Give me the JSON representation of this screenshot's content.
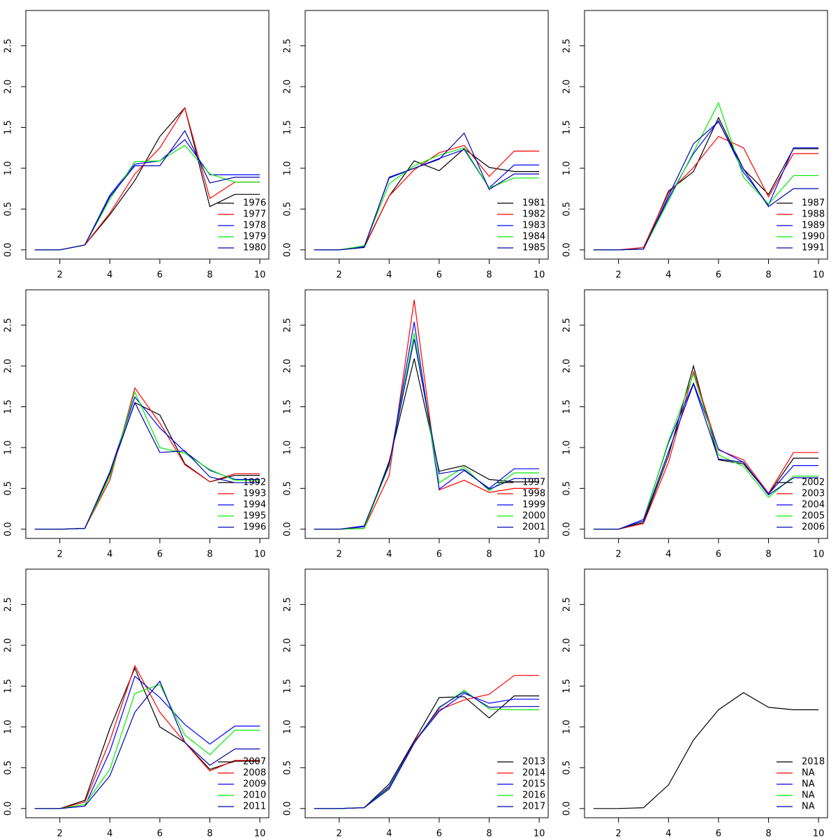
{
  "chart_data": [
    {
      "type": "line",
      "x": [
        1,
        2,
        3,
        4,
        5,
        6,
        7,
        8,
        9,
        10
      ],
      "xlim": [
        0.64,
        10.36
      ],
      "ylim": [
        -0.113,
        2.933
      ],
      "xticks": [
        2,
        4,
        6,
        8,
        10
      ],
      "yticks": [
        {
          "value": 0,
          "label": "0.0"
        },
        0.5,
        {
          "value": 1,
          "label": "1.0"
        },
        1.5,
        {
          "value": 2,
          "label": "2.0"
        },
        2.5
      ],
      "legend": "bottomright",
      "series": [
        {
          "name": "1976",
          "color": "#000000",
          "values": [
            0,
            0,
            0.06,
            0.43,
            0.85,
            1.39,
            1.74,
            0.53,
            0.68,
            0.68
          ]
        },
        {
          "name": "1977",
          "color": "#ff0000",
          "values": [
            0,
            0,
            0.06,
            0.45,
            0.93,
            1.25,
            1.74,
            0.63,
            0.83,
            0.83
          ]
        },
        {
          "name": "1978",
          "color": "#0000ff",
          "values": [
            0,
            0,
            0.06,
            0.67,
            1.05,
            1.09,
            1.35,
            0.92,
            0.92,
            0.92
          ]
        },
        {
          "name": "1979",
          "color": "#00ee00",
          "values": [
            0,
            0,
            0.06,
            0.62,
            1.08,
            1.09,
            1.28,
            0.93,
            0.83,
            0.83
          ]
        },
        {
          "name": "1980",
          "color": "#0000b0",
          "values": [
            0,
            0,
            0.06,
            0.65,
            1.03,
            1.03,
            1.46,
            0.82,
            0.89,
            0.89
          ]
        }
      ]
    },
    {
      "type": "line",
      "x": [
        1,
        2,
        3,
        4,
        5,
        6,
        7,
        8,
        9,
        10
      ],
      "xlim": [
        0.64,
        10.36
      ],
      "ylim": [
        -0.113,
        2.933
      ],
      "xticks": [
        2,
        4,
        6,
        8,
        10
      ],
      "yticks": [
        {
          "value": 0,
          "label": "0.0"
        },
        0.5,
        {
          "value": 1,
          "label": "1.0"
        },
        1.5,
        {
          "value": 2,
          "label": "2.0"
        },
        2.5
      ],
      "legend": "bottomright",
      "series": [
        {
          "name": "1981",
          "color": "#000000",
          "values": [
            0,
            0,
            0.03,
            0.66,
            1.09,
            0.97,
            1.24,
            1.01,
            0.96,
            0.96
          ]
        },
        {
          "name": "1982",
          "color": "#ff0000",
          "values": [
            0,
            0,
            0.04,
            0.66,
            0.98,
            1.19,
            1.28,
            0.9,
            1.21,
            1.21
          ]
        },
        {
          "name": "1983",
          "color": "#0000ff",
          "values": [
            0,
            0,
            0.04,
            0.88,
            1.0,
            1.12,
            1.23,
            0.76,
            1.04,
            1.04
          ]
        },
        {
          "name": "1984",
          "color": "#00ee00",
          "values": [
            0,
            0,
            0.05,
            0.81,
            1.03,
            1.16,
            1.25,
            0.76,
            0.88,
            0.88
          ]
        },
        {
          "name": "1985",
          "color": "#0000b0",
          "values": [
            0,
            0,
            0.03,
            0.89,
            1.0,
            1.11,
            1.43,
            0.74,
            0.93,
            0.93
          ]
        }
      ]
    },
    {
      "type": "line",
      "x": [
        1,
        2,
        3,
        4,
        5,
        6,
        7,
        8,
        9,
        10
      ],
      "xlim": [
        0.64,
        10.36
      ],
      "ylim": [
        -0.113,
        2.933
      ],
      "xticks": [
        2,
        4,
        6,
        8,
        10
      ],
      "yticks": [
        {
          "value": 0,
          "label": "0.0"
        },
        0.5,
        {
          "value": 1,
          "label": "1.0"
        },
        1.5,
        {
          "value": 2,
          "label": "2.0"
        },
        2.5
      ],
      "legend": "bottomright",
      "series": [
        {
          "name": "1987",
          "color": "#000000",
          "values": [
            0,
            0,
            0.01,
            0.72,
            0.96,
            1.62,
            0.99,
            0.68,
            1.24,
            1.24
          ]
        },
        {
          "name": "1988",
          "color": "#ff0000",
          "values": [
            0,
            0,
            0.03,
            0.7,
            1.01,
            1.39,
            1.25,
            0.65,
            1.18,
            1.18
          ]
        },
        {
          "name": "1989",
          "color": "#0000ff",
          "values": [
            0,
            0,
            0.01,
            0.63,
            1.18,
            1.58,
            0.95,
            0.55,
            1.25,
            1.25
          ]
        },
        {
          "name": "1990",
          "color": "#00ee00",
          "values": [
            0,
            0,
            0.01,
            0.6,
            1.2,
            1.8,
            0.89,
            0.56,
            0.91,
            0.91
          ]
        },
        {
          "name": "1991",
          "color": "#0000b0",
          "values": [
            0,
            0,
            0.01,
            0.66,
            1.3,
            1.57,
            0.99,
            0.53,
            0.75,
            0.75
          ]
        }
      ]
    },
    {
      "type": "line",
      "x": [
        1,
        2,
        3,
        4,
        5,
        6,
        7,
        8,
        9,
        10
      ],
      "xlim": [
        0.64,
        10.36
      ],
      "ylim": [
        -0.113,
        2.933
      ],
      "xticks": [
        2,
        4,
        6,
        8,
        10
      ],
      "yticks": [
        {
          "value": 0,
          "label": "0.0"
        },
        0.5,
        {
          "value": 1,
          "label": "1.0"
        },
        1.5,
        {
          "value": 2,
          "label": "2.0"
        },
        2.5
      ],
      "legend": "bottomright",
      "series": [
        {
          "name": "1992",
          "color": "#000000",
          "values": [
            0,
            0,
            0.01,
            0.68,
            1.55,
            1.4,
            0.8,
            0.58,
            0.66,
            0.66
          ]
        },
        {
          "name": "1993",
          "color": "#ff0000",
          "values": [
            0,
            0,
            0.01,
            0.6,
            1.73,
            1.3,
            0.79,
            0.58,
            0.68,
            0.68
          ]
        },
        {
          "name": "1994",
          "color": "#0000ff",
          "values": [
            0,
            0,
            0.01,
            0.7,
            1.62,
            1.24,
            0.95,
            0.72,
            0.61,
            0.61
          ]
        },
        {
          "name": "1995",
          "color": "#00ee00",
          "values": [
            0,
            0,
            0.01,
            0.64,
            1.68,
            1.0,
            0.93,
            0.73,
            0.6,
            0.6
          ]
        },
        {
          "name": "1996",
          "color": "#0000b0",
          "values": [
            0,
            0,
            0.01,
            0.7,
            1.55,
            0.94,
            0.96,
            0.64,
            0.57,
            0.57
          ]
        }
      ]
    },
    {
      "type": "line",
      "x": [
        1,
        2,
        3,
        4,
        5,
        6,
        7,
        8,
        9,
        10
      ],
      "xlim": [
        0.64,
        10.36
      ],
      "ylim": [
        -0.113,
        2.933
      ],
      "xticks": [
        2,
        4,
        6,
        8,
        10
      ],
      "yticks": [
        {
          "value": 0,
          "label": "0.0"
        },
        0.5,
        {
          "value": 1,
          "label": "1.0"
        },
        1.5,
        {
          "value": 2,
          "label": "2.0"
        },
        2.5
      ],
      "legend": "bottomright",
      "series": [
        {
          "name": "1997",
          "color": "#000000",
          "values": [
            0,
            0,
            0.01,
            0.83,
            2.09,
            0.71,
            0.78,
            0.61,
            0.58,
            0.58
          ]
        },
        {
          "name": "1998",
          "color": "#ff0000",
          "values": [
            0,
            0,
            0.01,
            0.66,
            2.81,
            0.48,
            0.6,
            0.45,
            0.5,
            0.5
          ]
        },
        {
          "name": "1999",
          "color": "#0000ff",
          "values": [
            0,
            0,
            0.03,
            0.78,
            2.54,
            0.49,
            0.72,
            0.5,
            0.74,
            0.74
          ]
        },
        {
          "name": "2000",
          "color": "#00ee00",
          "values": [
            0,
            0,
            0.01,
            0.79,
            2.4,
            0.57,
            0.76,
            0.47,
            0.69,
            0.69
          ]
        },
        {
          "name": "2001",
          "color": "#0000b0",
          "values": [
            0,
            0,
            0.04,
            0.8,
            2.33,
            0.68,
            0.73,
            0.49,
            0.62,
            0.62
          ]
        }
      ]
    },
    {
      "type": "line",
      "x": [
        1,
        2,
        3,
        4,
        5,
        6,
        7,
        8,
        9,
        10
      ],
      "xlim": [
        0.64,
        10.36
      ],
      "ylim": [
        -0.113,
        2.933
      ],
      "xticks": [
        2,
        4,
        6,
        8,
        10
      ],
      "yticks": [
        {
          "value": 0,
          "label": "0.0"
        },
        0.5,
        {
          "value": 1,
          "label": "1.0"
        },
        1.5,
        {
          "value": 2,
          "label": "2.0"
        },
        2.5
      ],
      "legend": "bottomright",
      "series": [
        {
          "name": "2002",
          "color": "#000000",
          "values": [
            0,
            0,
            0.08,
            0.9,
            2.0,
            0.85,
            0.8,
            0.43,
            0.87,
            0.87
          ]
        },
        {
          "name": "2003",
          "color": "#ff0000",
          "values": [
            0,
            0,
            0.07,
            0.82,
            1.93,
            0.97,
            0.85,
            0.44,
            0.94,
            0.94
          ]
        },
        {
          "name": "2004",
          "color": "#0000ff",
          "values": [
            0,
            0,
            0.12,
            1.06,
            1.79,
            0.98,
            0.82,
            0.43,
            0.78,
            0.78
          ]
        },
        {
          "name": "2005",
          "color": "#00ee00",
          "values": [
            0,
            0,
            0.1,
            1.08,
            1.9,
            0.91,
            0.77,
            0.39,
            0.65,
            0.65
          ]
        },
        {
          "name": "2006",
          "color": "#0000b0",
          "values": [
            0,
            0,
            0.1,
            0.95,
            1.78,
            0.86,
            0.82,
            0.42,
            0.63,
            0.63
          ]
        }
      ]
    },
    {
      "type": "line",
      "x": [
        1,
        2,
        3,
        4,
        5,
        6,
        7,
        8,
        9,
        10
      ],
      "xlim": [
        0.64,
        10.36
      ],
      "ylim": [
        -0.113,
        2.933
      ],
      "xticks": [
        2,
        4,
        6,
        8,
        10
      ],
      "yticks": [
        {
          "value": 0,
          "label": "0.0"
        },
        0.5,
        {
          "value": 1,
          "label": "1.0"
        },
        1.5,
        {
          "value": 2,
          "label": "2.0"
        },
        2.5
      ],
      "legend": "bottomright",
      "series": [
        {
          "name": "2007",
          "color": "#000000",
          "values": [
            0,
            0,
            0.1,
            0.98,
            1.72,
            1.0,
            0.81,
            0.48,
            0.58,
            0.58
          ]
        },
        {
          "name": "2008",
          "color": "#ff0000",
          "values": [
            0,
            0,
            0.08,
            0.83,
            1.75,
            1.18,
            0.81,
            0.46,
            0.59,
            0.59
          ]
        },
        {
          "name": "2009",
          "color": "#0000ff",
          "values": [
            0,
            0,
            0.03,
            0.7,
            1.62,
            1.36,
            1.03,
            0.79,
            1.01,
            1.01
          ]
        },
        {
          "name": "2010",
          "color": "#00ee00",
          "values": [
            0,
            0,
            0.05,
            0.48,
            1.41,
            1.52,
            0.9,
            0.66,
            0.96,
            0.96
          ]
        },
        {
          "name": "2011",
          "color": "#0000b0",
          "values": [
            0,
            0,
            0.03,
            0.4,
            1.18,
            1.56,
            0.81,
            0.53,
            0.73,
            0.73
          ]
        }
      ]
    },
    {
      "type": "line",
      "x": [
        1,
        2,
        3,
        4,
        5,
        6,
        7,
        8,
        9,
        10
      ],
      "xlim": [
        0.64,
        10.36
      ],
      "ylim": [
        -0.113,
        2.933
      ],
      "xticks": [
        2,
        4,
        6,
        8,
        10
      ],
      "yticks": [
        {
          "value": 0,
          "label": "0.0"
        },
        0.5,
        {
          "value": 1,
          "label": "1.0"
        },
        1.5,
        {
          "value": 2,
          "label": "2.0"
        },
        2.5
      ],
      "legend": "bottomright",
      "series": [
        {
          "name": "2013",
          "color": "#000000",
          "values": [
            0,
            0,
            0.01,
            0.3,
            0.83,
            1.36,
            1.37,
            1.11,
            1.38,
            1.38
          ]
        },
        {
          "name": "2014",
          "color": "#ff0000",
          "values": [
            0,
            0,
            0.01,
            0.26,
            0.82,
            1.21,
            1.33,
            1.4,
            1.63,
            1.63
          ]
        },
        {
          "name": "2015",
          "color": "#0000ff",
          "values": [
            0,
            0,
            0.01,
            0.27,
            0.81,
            1.19,
            1.41,
            1.29,
            1.34,
            1.34
          ]
        },
        {
          "name": "2016",
          "color": "#00ee00",
          "values": [
            0,
            0,
            0.01,
            0.25,
            0.8,
            1.23,
            1.45,
            1.22,
            1.21,
            1.21
          ]
        },
        {
          "name": "2017",
          "color": "#0000b0",
          "values": [
            0,
            0,
            0.01,
            0.24,
            0.8,
            1.24,
            1.43,
            1.24,
            1.25,
            1.25
          ]
        }
      ]
    },
    {
      "type": "line",
      "x": [
        1,
        2,
        3,
        4,
        5,
        6,
        7,
        8,
        9,
        10
      ],
      "xlim": [
        0.64,
        10.36
      ],
      "ylim": [
        -0.113,
        2.933
      ],
      "xticks": [
        2,
        4,
        6,
        8,
        10
      ],
      "yticks": [
        {
          "value": 0,
          "label": "0.0"
        },
        0.5,
        {
          "value": 1,
          "label": "1.0"
        },
        1.5,
        {
          "value": 2,
          "label": "2.0"
        },
        2.5
      ],
      "legend": "bottomright",
      "series": [
        {
          "name": "2018",
          "color": "#000000",
          "values": [
            0,
            0,
            0.01,
            0.29,
            0.84,
            1.21,
            1.42,
            1.24,
            1.21,
            1.21
          ]
        },
        {
          "name": "NA",
          "color": "#ff0000",
          "values": [
            null,
            null,
            null,
            null,
            null,
            null,
            null,
            null,
            null,
            null
          ]
        },
        {
          "name": "NA",
          "color": "#0000ff",
          "values": [
            null,
            null,
            null,
            null,
            null,
            null,
            null,
            null,
            null,
            null
          ]
        },
        {
          "name": "NA",
          "color": "#00ee00",
          "values": [
            null,
            null,
            null,
            null,
            null,
            null,
            null,
            null,
            null,
            null
          ]
        },
        {
          "name": "NA",
          "color": "#0000b0",
          "values": [
            null,
            null,
            null,
            null,
            null,
            null,
            null,
            null,
            null,
            null
          ]
        }
      ]
    }
  ]
}
